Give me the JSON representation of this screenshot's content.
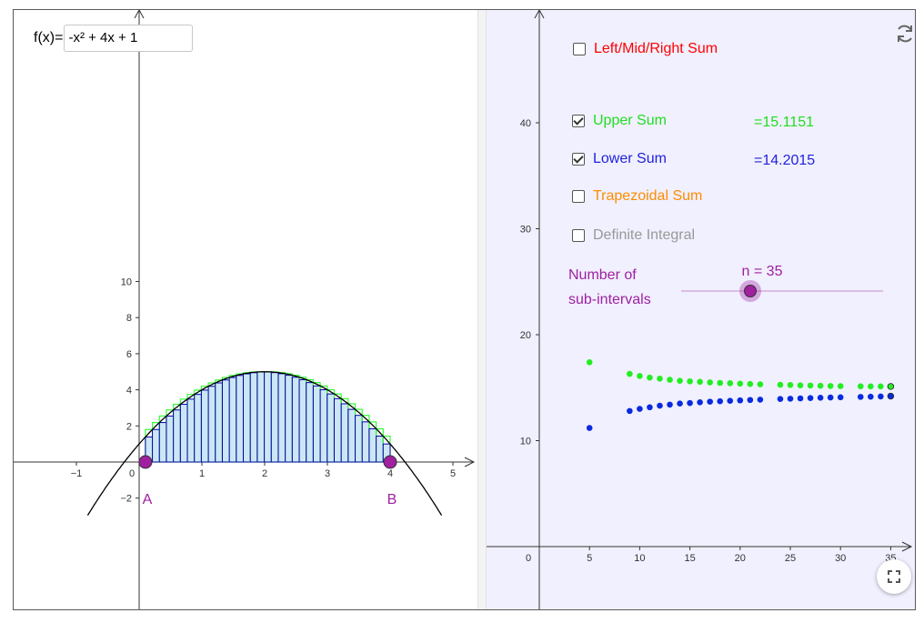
{
  "function_input": {
    "label": "f(x)=",
    "value": "-x² + 4x + 1"
  },
  "graphics1": {
    "x_ticks": [
      "−1",
      "0",
      "1",
      "2",
      "3",
      "4",
      "5"
    ],
    "y_ticks": [
      "10",
      "8",
      "6",
      "4",
      "2",
      "−2"
    ],
    "points": [
      {
        "name": "A",
        "x": 0.1,
        "color": "#a020a0"
      },
      {
        "name": "B",
        "x": 4.0,
        "color": "#a020a0"
      }
    ],
    "colors": {
      "upper": "#33ff33",
      "lower": "#0000aa",
      "fill": "#cce6f5",
      "curve": "#000000"
    }
  },
  "controls": {
    "left_mid_right": {
      "label": "Left/Mid/Right Sum",
      "checked": false,
      "color": "#ff0000"
    },
    "upper_sum": {
      "label": "Upper Sum",
      "checked": true,
      "value": "=15.1151",
      "color": "#22dd22"
    },
    "lower_sum": {
      "label": "Lower Sum",
      "checked": true,
      "value": "=14.2015",
      "color": "#2222dd"
    },
    "trapezoidal": {
      "label": "Trapezoidal Sum",
      "checked": false,
      "color": "#ff8c00"
    },
    "definite_integral": {
      "label": "Definite Integral",
      "checked": false,
      "color": "#999999"
    },
    "slider": {
      "label_line1": "Number of",
      "label_line2": "sub-intervals",
      "value_text": "n = 35",
      "value": 35,
      "color": "#a020a0"
    }
  },
  "graphics2": {
    "x_ticks": [
      "0",
      "5",
      "10",
      "15",
      "20",
      "25",
      "30",
      "35"
    ],
    "y_ticks": [
      "40",
      "30",
      "20",
      "10"
    ]
  },
  "chart_data": {
    "type": "scatter",
    "title": "",
    "xlabel": "",
    "ylabel": "",
    "xlim": [
      0,
      38
    ],
    "ylim": [
      0,
      44
    ],
    "series": [
      {
        "color": "#22ee22",
        "x": [
          5,
          9,
          10,
          11,
          12,
          13,
          14,
          15,
          16,
          17,
          18,
          19,
          20,
          21,
          22,
          24,
          25,
          26,
          27,
          28,
          29,
          30,
          32,
          33,
          34,
          35
        ],
        "y": [
          17.4,
          16.3,
          16.1,
          15.95,
          15.85,
          15.75,
          15.65,
          15.6,
          15.55,
          15.5,
          15.45,
          15.42,
          15.38,
          15.35,
          15.32,
          15.28,
          15.25,
          15.22,
          15.2,
          15.18,
          15.16,
          15.15,
          15.13,
          15.12,
          15.12,
          15.1151
        ]
      },
      {
        "color": "#0a2adf",
        "x": [
          5,
          9,
          10,
          11,
          12,
          13,
          14,
          15,
          16,
          17,
          18,
          19,
          20,
          21,
          22,
          24,
          25,
          26,
          27,
          28,
          29,
          30,
          32,
          33,
          34,
          35
        ],
        "y": [
          11.2,
          12.8,
          13.0,
          13.15,
          13.3,
          13.4,
          13.5,
          13.55,
          13.62,
          13.68,
          13.72,
          13.76,
          13.8,
          13.84,
          13.87,
          13.93,
          13.96,
          13.99,
          14.02,
          14.05,
          14.07,
          14.09,
          14.13,
          14.15,
          14.17,
          14.2015
        ]
      }
    ]
  }
}
